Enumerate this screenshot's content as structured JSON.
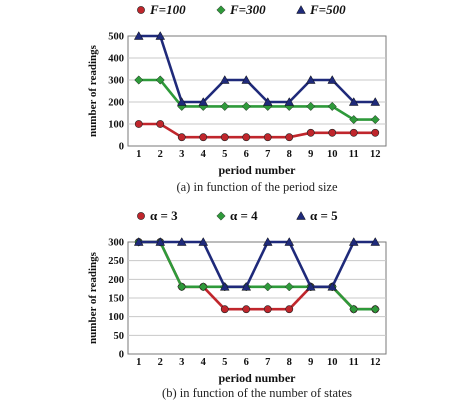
{
  "chart_data": [
    {
      "type": "line",
      "caption": "(a) in function of the period size",
      "xlabel": "period number",
      "ylabel": "number of readings",
      "x": [
        1,
        2,
        3,
        4,
        5,
        6,
        7,
        8,
        9,
        10,
        11,
        12
      ],
      "xticks": [
        "1",
        "2",
        "3",
        "4",
        "5",
        "6",
        "7",
        "8",
        "9",
        "10",
        "11",
        "12"
      ],
      "ylim": [
        0,
        500
      ],
      "yticks": [
        "0",
        "100",
        "200",
        "300",
        "400",
        "500"
      ],
      "ytick_values": [
        0,
        100,
        200,
        300,
        400,
        500
      ],
      "grid": "horizontal",
      "legend_position": "top",
      "series": [
        {
          "name": "F=100",
          "color": "#c0262c",
          "marker": "circle",
          "values": [
            100,
            100,
            40,
            40,
            40,
            40,
            40,
            40,
            60,
            60,
            60,
            60
          ]
        },
        {
          "name": "F=300",
          "color": "#2e9a3a",
          "marker": "diamond",
          "values": [
            300,
            300,
            180,
            180,
            180,
            180,
            180,
            180,
            180,
            180,
            120,
            120
          ]
        },
        {
          "name": "F=500",
          "color": "#1f2a7a",
          "marker": "triangle",
          "values": [
            500,
            500,
            200,
            200,
            300,
            300,
            200,
            200,
            300,
            300,
            200,
            200
          ]
        }
      ]
    },
    {
      "type": "line",
      "caption": "(b) in function of the number of states",
      "xlabel": "period number",
      "ylabel": "number of readings",
      "x": [
        1,
        2,
        3,
        4,
        5,
        6,
        7,
        8,
        9,
        10,
        11,
        12
      ],
      "xticks": [
        "1",
        "2",
        "3",
        "4",
        "5",
        "6",
        "7",
        "8",
        "9",
        "10",
        "11",
        "12"
      ],
      "ylim": [
        0,
        300
      ],
      "yticks": [
        "0",
        "50",
        "100",
        "150",
        "200",
        "250",
        "300"
      ],
      "ytick_values": [
        0,
        50,
        100,
        150,
        200,
        250,
        300
      ],
      "grid": "horizontal",
      "legend_position": "top",
      "series": [
        {
          "name": "α = 3",
          "color": "#c0262c",
          "marker": "circle",
          "values": [
            300,
            300,
            180,
            180,
            120,
            120,
            120,
            120,
            180,
            180,
            120,
            120
          ]
        },
        {
          "name": "α = 4",
          "color": "#2e9a3a",
          "marker": "diamond",
          "values": [
            300,
            300,
            180,
            180,
            180,
            180,
            180,
            180,
            180,
            180,
            120,
            120
          ]
        },
        {
          "name": "α = 5",
          "color": "#1f2a7a",
          "marker": "triangle",
          "values": [
            300,
            300,
            300,
            300,
            180,
            180,
            300,
            300,
            180,
            180,
            300,
            300
          ]
        }
      ]
    }
  ]
}
